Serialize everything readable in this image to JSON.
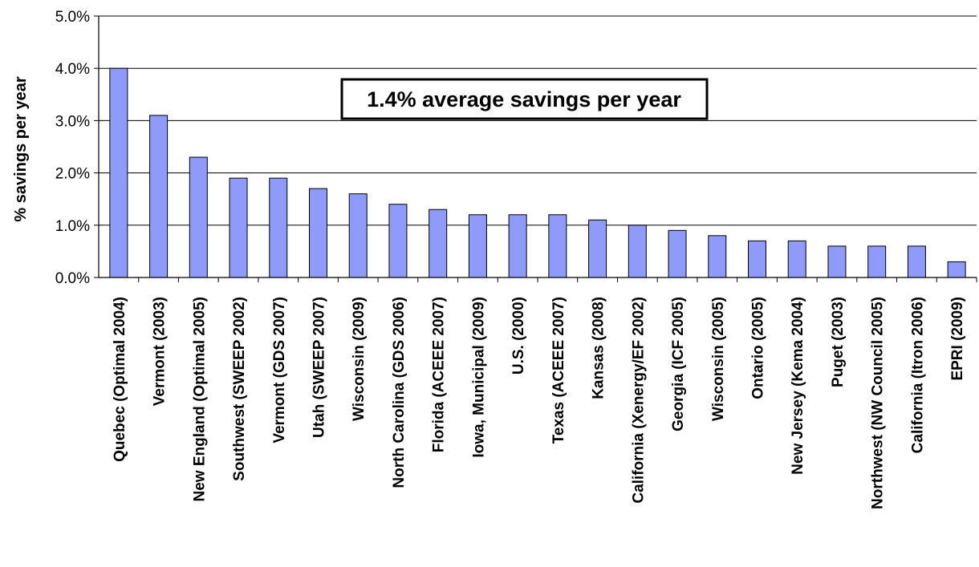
{
  "chart_data": {
    "type": "bar",
    "title": "",
    "xlabel": "",
    "ylabel": "% savings per year",
    "ylim": [
      0,
      5
    ],
    "yticks": [
      "0.0%",
      "1.0%",
      "2.0%",
      "3.0%",
      "4.0%",
      "5.0%"
    ],
    "grid": true,
    "legend": "none",
    "annotation": "1.4% average savings per year",
    "bar_color": "#8f9bf8",
    "categories": [
      "Quebec (Optimal 2004)",
      "Vermont (2003)",
      "New England (Optimal 2005)",
      "Southwest (SWEEP 2002)",
      "Vermont (GDS 2007)",
      "Utah (SWEEP 2007)",
      "Wisconsin (2009)",
      "North Carolina (GDS 2006)",
      "Florida (ACEEE 2007)",
      "Iowa, Municipal (2009)",
      "U.S. (2000)",
      "Texas (ACEEE 2007)",
      "Kansas (2008)",
      "California (Xenergy/EF 2002)",
      "Georgia (ICF 2005)",
      "Wisconsin (2005)",
      "Ontario (2005)",
      "New Jersey (Kema 2004)",
      "Puget (2003)",
      "Northwest (NW Council 2005)",
      "California (Itron 2006)",
      "EPRI (2009)"
    ],
    "values": [
      4.0,
      3.1,
      2.3,
      1.9,
      1.9,
      1.7,
      1.6,
      1.4,
      1.3,
      1.2,
      1.2,
      1.2,
      1.1,
      1.0,
      0.9,
      0.8,
      0.7,
      0.7,
      0.6,
      0.6,
      0.6,
      0.3
    ]
  }
}
